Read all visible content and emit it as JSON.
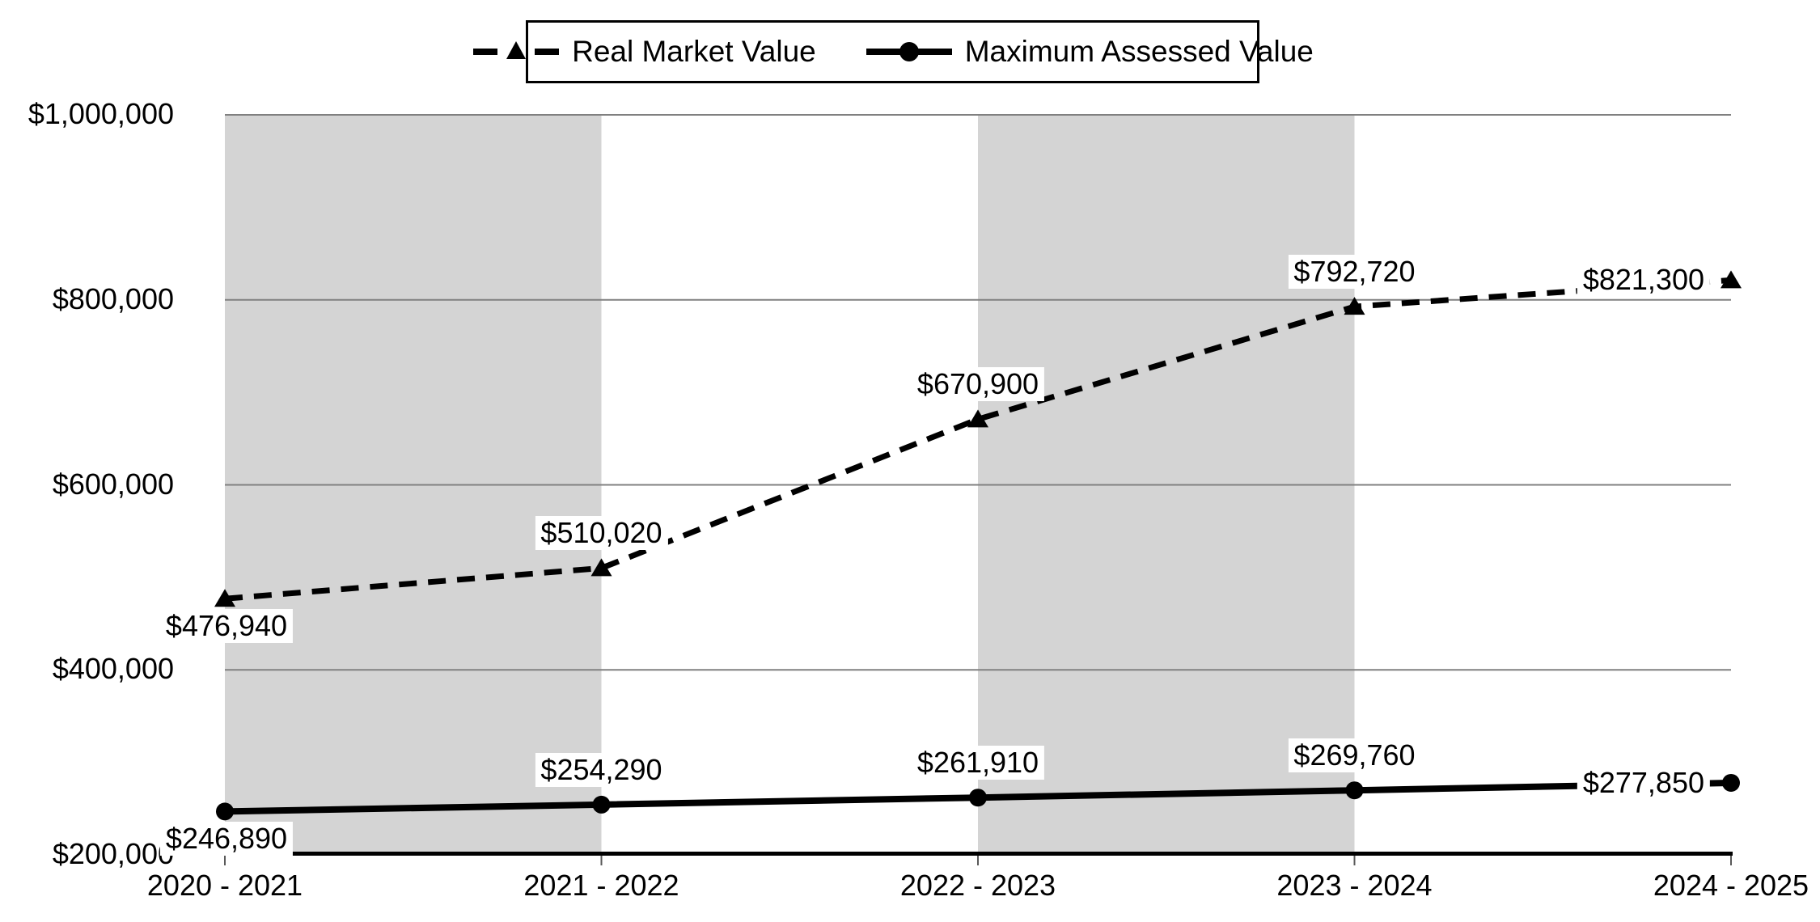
{
  "chart_data": {
    "type": "line",
    "categories": [
      "2020 - 2021",
      "2021 - 2022",
      "2022 - 2023",
      "2023 - 2024",
      "2024 - 2025"
    ],
    "series": [
      {
        "name": "Real Market Value",
        "line": "dashed",
        "marker": "triangle",
        "values": [
          476940,
          510020,
          670900,
          792720,
          821300
        ],
        "labels": [
          "$476,940",
          "$510,020",
          "$670,900",
          "$792,720",
          "$821,300"
        ]
      },
      {
        "name": "Maximum Assessed Value",
        "line": "solid",
        "marker": "circle",
        "values": [
          246890,
          254290,
          261910,
          269760,
          277850
        ],
        "labels": [
          "$246,890",
          "$254,290",
          "$261,910",
          "$269,760",
          "$277,850"
        ]
      }
    ],
    "y_axis": {
      "min": 200000,
      "max": 1000000,
      "step": 200000,
      "tick_labels": [
        "$1,000,000",
        "$800,000",
        "$600,000",
        "$400,000",
        "$200,000"
      ]
    },
    "legend": {
      "position": "top",
      "entries": [
        "Real Market Value",
        "Maximum Assessed Value"
      ]
    },
    "grid": true,
    "shaded_band_intervals": [
      [
        0,
        1
      ],
      [
        2,
        3
      ]
    ],
    "colors": {
      "line": "#000000",
      "band": "#d4d4d4",
      "gridline": "#808080",
      "tick": "#595959",
      "label_bg": "#ffffff",
      "text": "#000000"
    }
  }
}
